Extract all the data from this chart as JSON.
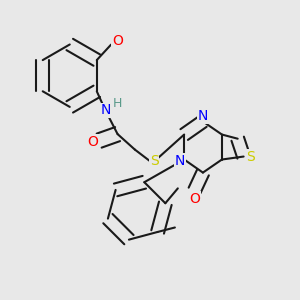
{
  "bg_color": "#e8e8e8",
  "bond_color": "#1a1a1a",
  "bond_width": 1.5,
  "atom_colors": {
    "N": "#0000ff",
    "O": "#ff0000",
    "S": "#cccc00",
    "H": "#5a9a8a",
    "C": "#1a1a1a"
  },
  "font_size": 9,
  "fig_size": [
    3.0,
    3.0
  ],
  "dpi": 100
}
